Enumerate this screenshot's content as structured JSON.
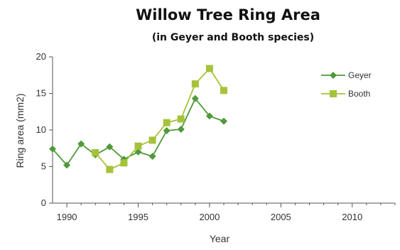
{
  "chart_data": {
    "type": "line",
    "title": "Willow Tree Ring Area",
    "subtitle": "(in Geyer and Booth species)",
    "xlabel": "Year",
    "ylabel": "Ring area (mm2)",
    "xlim": [
      1989,
      2013
    ],
    "ylim": [
      0,
      20
    ],
    "xticks": [
      1990,
      1995,
      2000,
      2005,
      2010
    ],
    "yticks": [
      0,
      5,
      10,
      15,
      20
    ],
    "grid": false,
    "legend_position": "top-right",
    "series": [
      {
        "name": "Geyer",
        "marker": "diamond",
        "color": "#4e9a3a",
        "x": [
          1989,
          1990,
          1991,
          1992,
          1993,
          1994,
          1995,
          1996,
          1997,
          1998,
          1999,
          2000,
          2001
        ],
        "y": [
          7.4,
          5.2,
          8.1,
          6.6,
          7.7,
          6.0,
          7.0,
          6.4,
          9.9,
          10.1,
          14.3,
          11.9,
          11.2
        ]
      },
      {
        "name": "Booth",
        "marker": "square",
        "color": "#a5c23a",
        "x": [
          1992,
          1993,
          1994,
          1995,
          1996,
          1997,
          1998,
          1999,
          2000,
          2001
        ],
        "y": [
          6.9,
          4.6,
          5.5,
          7.8,
          8.6,
          11.0,
          11.5,
          16.3,
          18.4,
          15.4
        ]
      }
    ]
  }
}
